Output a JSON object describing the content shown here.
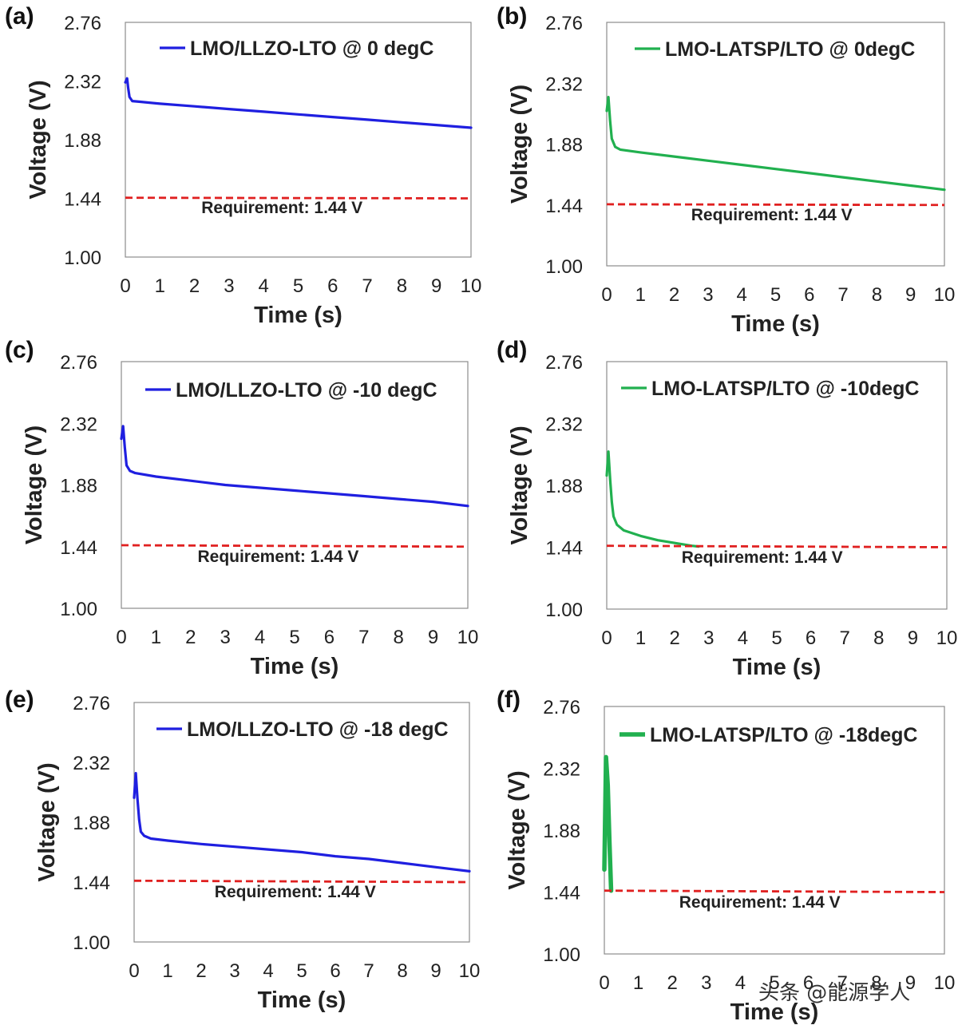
{
  "chart_data": [
    {
      "type": "line",
      "panel": "(a)",
      "title": "",
      "xlabel": "Time (s)",
      "ylabel": "Voltage (V)",
      "xlim": [
        0,
        10
      ],
      "ylim": [
        1.0,
        2.76
      ],
      "xticks": [
        "0",
        "1",
        "2",
        "3",
        "4",
        "5",
        "6",
        "7",
        "8",
        "9",
        "10"
      ],
      "yticks": [
        "1.00",
        "1.44",
        "1.88",
        "2.32",
        "2.76"
      ],
      "grid": false,
      "legend_position": "top-center",
      "series": [
        {
          "name": "LMO/LLZO-LTO @ 0 degC",
          "color": "#1f1fe0",
          "width": 3.2,
          "x": [
            0,
            0.05,
            0.08,
            0.12,
            0.2,
            0.4,
            1,
            2,
            3,
            4,
            5,
            6,
            7,
            8,
            9,
            10
          ],
          "y": [
            2.31,
            2.34,
            2.27,
            2.2,
            2.17,
            2.165,
            2.15,
            2.13,
            2.11,
            2.09,
            2.07,
            2.05,
            2.03,
            2.01,
            1.99,
            1.97
          ]
        },
        {
          "name": "Requirement: 1.44 V",
          "color": "#e02020",
          "dash": true,
          "width": 2.8,
          "x": [
            0,
            10
          ],
          "y": [
            1.445,
            1.44
          ]
        }
      ],
      "annotations": [
        {
          "text": "Requirement: 1.44 V",
          "x": 2.2,
          "y": 1.33
        }
      ]
    },
    {
      "type": "line",
      "panel": "(b)",
      "title": "",
      "xlabel": "Time (s)",
      "ylabel": "Voltage (V)",
      "xlim": [
        0,
        10
      ],
      "ylim": [
        1.0,
        2.76
      ],
      "xticks": [
        "0",
        "1",
        "2",
        "3",
        "4",
        "5",
        "6",
        "7",
        "8",
        "9",
        "10"
      ],
      "yticks": [
        "1.00",
        "1.44",
        "1.88",
        "2.32",
        "2.76"
      ],
      "grid": false,
      "legend_position": "top-center",
      "series": [
        {
          "name": "LMO-LATSP/LTO @ 0degC",
          "color": "#21b04f",
          "width": 3.2,
          "x": [
            0,
            0.05,
            0.1,
            0.15,
            0.25,
            0.4,
            1,
            2,
            3,
            4,
            5,
            6,
            7,
            8,
            9,
            10
          ],
          "y": [
            2.12,
            2.22,
            2.05,
            1.92,
            1.86,
            1.84,
            1.82,
            1.79,
            1.76,
            1.73,
            1.7,
            1.67,
            1.64,
            1.61,
            1.58,
            1.55
          ]
        },
        {
          "name": "Requirement: 1.44 V",
          "color": "#e02020",
          "dash": true,
          "width": 2.8,
          "x": [
            0,
            10
          ],
          "y": [
            1.445,
            1.44
          ]
        }
      ],
      "annotations": [
        {
          "text": "Requirement: 1.44 V",
          "x": 2.5,
          "y": 1.33
        }
      ]
    },
    {
      "type": "line",
      "panel": "(c)",
      "title": "",
      "xlabel": "Time (s)",
      "ylabel": "Voltage (V)",
      "xlim": [
        0,
        10
      ],
      "ylim": [
        1.0,
        2.76
      ],
      "xticks": [
        "0",
        "1",
        "2",
        "3",
        "4",
        "5",
        "6",
        "7",
        "8",
        "9",
        "10"
      ],
      "yticks": [
        "1.00",
        "1.44",
        "1.88",
        "2.32",
        "2.76"
      ],
      "grid": false,
      "legend_position": "top-center",
      "series": [
        {
          "name": "LMO/LLZO-LTO @ -10 degC",
          "color": "#1f1fe0",
          "width": 3.2,
          "x": [
            0,
            0.05,
            0.1,
            0.15,
            0.25,
            0.4,
            1,
            2,
            3,
            4,
            5,
            6,
            7,
            8,
            9,
            10
          ],
          "y": [
            2.21,
            2.3,
            2.15,
            2.02,
            1.98,
            1.965,
            1.94,
            1.91,
            1.88,
            1.86,
            1.84,
            1.82,
            1.8,
            1.78,
            1.76,
            1.73
          ]
        },
        {
          "name": "Requirement: 1.44 V",
          "color": "#e02020",
          "dash": true,
          "width": 2.8,
          "x": [
            0,
            10
          ],
          "y": [
            1.45,
            1.44
          ]
        }
      ],
      "annotations": [
        {
          "text": "Requirement: 1.44 V",
          "x": 2.2,
          "y": 1.33
        }
      ]
    },
    {
      "type": "line",
      "panel": "(d)",
      "title": "",
      "xlabel": "Time (s)",
      "ylabel": "Voltage (V)",
      "xlim": [
        0,
        10
      ],
      "ylim": [
        1.0,
        2.76
      ],
      "xticks": [
        "0",
        "1",
        "2",
        "3",
        "4",
        "5",
        "6",
        "7",
        "8",
        "9",
        "10"
      ],
      "yticks": [
        "1.00",
        "1.44",
        "1.88",
        "2.32",
        "2.76"
      ],
      "grid": false,
      "legend_position": "top-center",
      "series": [
        {
          "name": "LMO-LATSP/LTO @ -10degC",
          "color": "#21b04f",
          "width": 3.2,
          "x": [
            0,
            0.05,
            0.1,
            0.15,
            0.2,
            0.3,
            0.5,
            1,
            1.5,
            2,
            2.5,
            2.7
          ],
          "y": [
            1.95,
            2.12,
            1.92,
            1.76,
            1.66,
            1.6,
            1.56,
            1.52,
            1.49,
            1.47,
            1.45,
            1.445
          ]
        },
        {
          "name": "Requirement: 1.44 V",
          "color": "#e02020",
          "dash": true,
          "width": 2.8,
          "x": [
            0,
            10
          ],
          "y": [
            1.45,
            1.44
          ]
        }
      ],
      "annotations": [
        {
          "text": "Requirement: 1.44 V",
          "x": 2.2,
          "y": 1.33
        }
      ]
    },
    {
      "type": "line",
      "panel": "(e)",
      "title": "",
      "xlabel": "Time (s)",
      "ylabel": "Voltage (V)",
      "xlim": [
        0,
        10
      ],
      "ylim": [
        1.0,
        2.76
      ],
      "xticks": [
        "0",
        "1",
        "2",
        "3",
        "4",
        "5",
        "6",
        "7",
        "8",
        "9",
        "10"
      ],
      "yticks": [
        "1.00",
        "1.44",
        "1.88",
        "2.32",
        "2.76"
      ],
      "grid": false,
      "legend_position": "top-center",
      "series": [
        {
          "name": "LMO/LLZO-LTO @ -18 degC",
          "color": "#1f1fe0",
          "width": 3.2,
          "x": [
            0,
            0.05,
            0.1,
            0.15,
            0.2,
            0.3,
            0.5,
            1,
            2,
            3,
            4,
            5,
            6,
            7,
            8,
            9,
            10
          ],
          "y": [
            2.06,
            2.24,
            2.05,
            1.9,
            1.81,
            1.78,
            1.76,
            1.745,
            1.72,
            1.7,
            1.68,
            1.66,
            1.63,
            1.61,
            1.58,
            1.55,
            1.52
          ]
        },
        {
          "name": "Requirement: 1.44 V",
          "color": "#e02020",
          "dash": true,
          "width": 2.8,
          "x": [
            0,
            10
          ],
          "y": [
            1.45,
            1.44
          ]
        }
      ],
      "annotations": [
        {
          "text": "Requirement: 1.44 V",
          "x": 2.4,
          "y": 1.33
        }
      ]
    },
    {
      "type": "line",
      "panel": "(f)",
      "title": "",
      "xlabel": "Time (s)",
      "ylabel": "Voltage (V)",
      "xlim": [
        0,
        10
      ],
      "ylim": [
        1.0,
        2.76
      ],
      "xticks": [
        "0",
        "1",
        "2",
        "3",
        "4",
        "5",
        "6",
        "7",
        "8",
        "9",
        "10"
      ],
      "yticks": [
        "1.00",
        "1.44",
        "1.88",
        "2.32",
        "2.76"
      ],
      "grid": false,
      "legend_position": "top-center",
      "series": [
        {
          "name": "LMO-LATSP/LTO @ -18degC",
          "color": "#21b04f",
          "width": 5.5,
          "x": [
            0,
            0.05,
            0.1,
            0.15,
            0.2
          ],
          "y": [
            1.6,
            2.4,
            2.2,
            1.8,
            1.45
          ]
        },
        {
          "name": "Requirement: 1.44 V",
          "color": "#e02020",
          "dash": true,
          "width": 2.8,
          "x": [
            0,
            10
          ],
          "y": [
            1.45,
            1.44
          ]
        }
      ],
      "annotations": [
        {
          "text": "Requirement: 1.44 V",
          "x": 2.2,
          "y": 1.33
        }
      ]
    }
  ],
  "watermark": "头条 @能源学人"
}
